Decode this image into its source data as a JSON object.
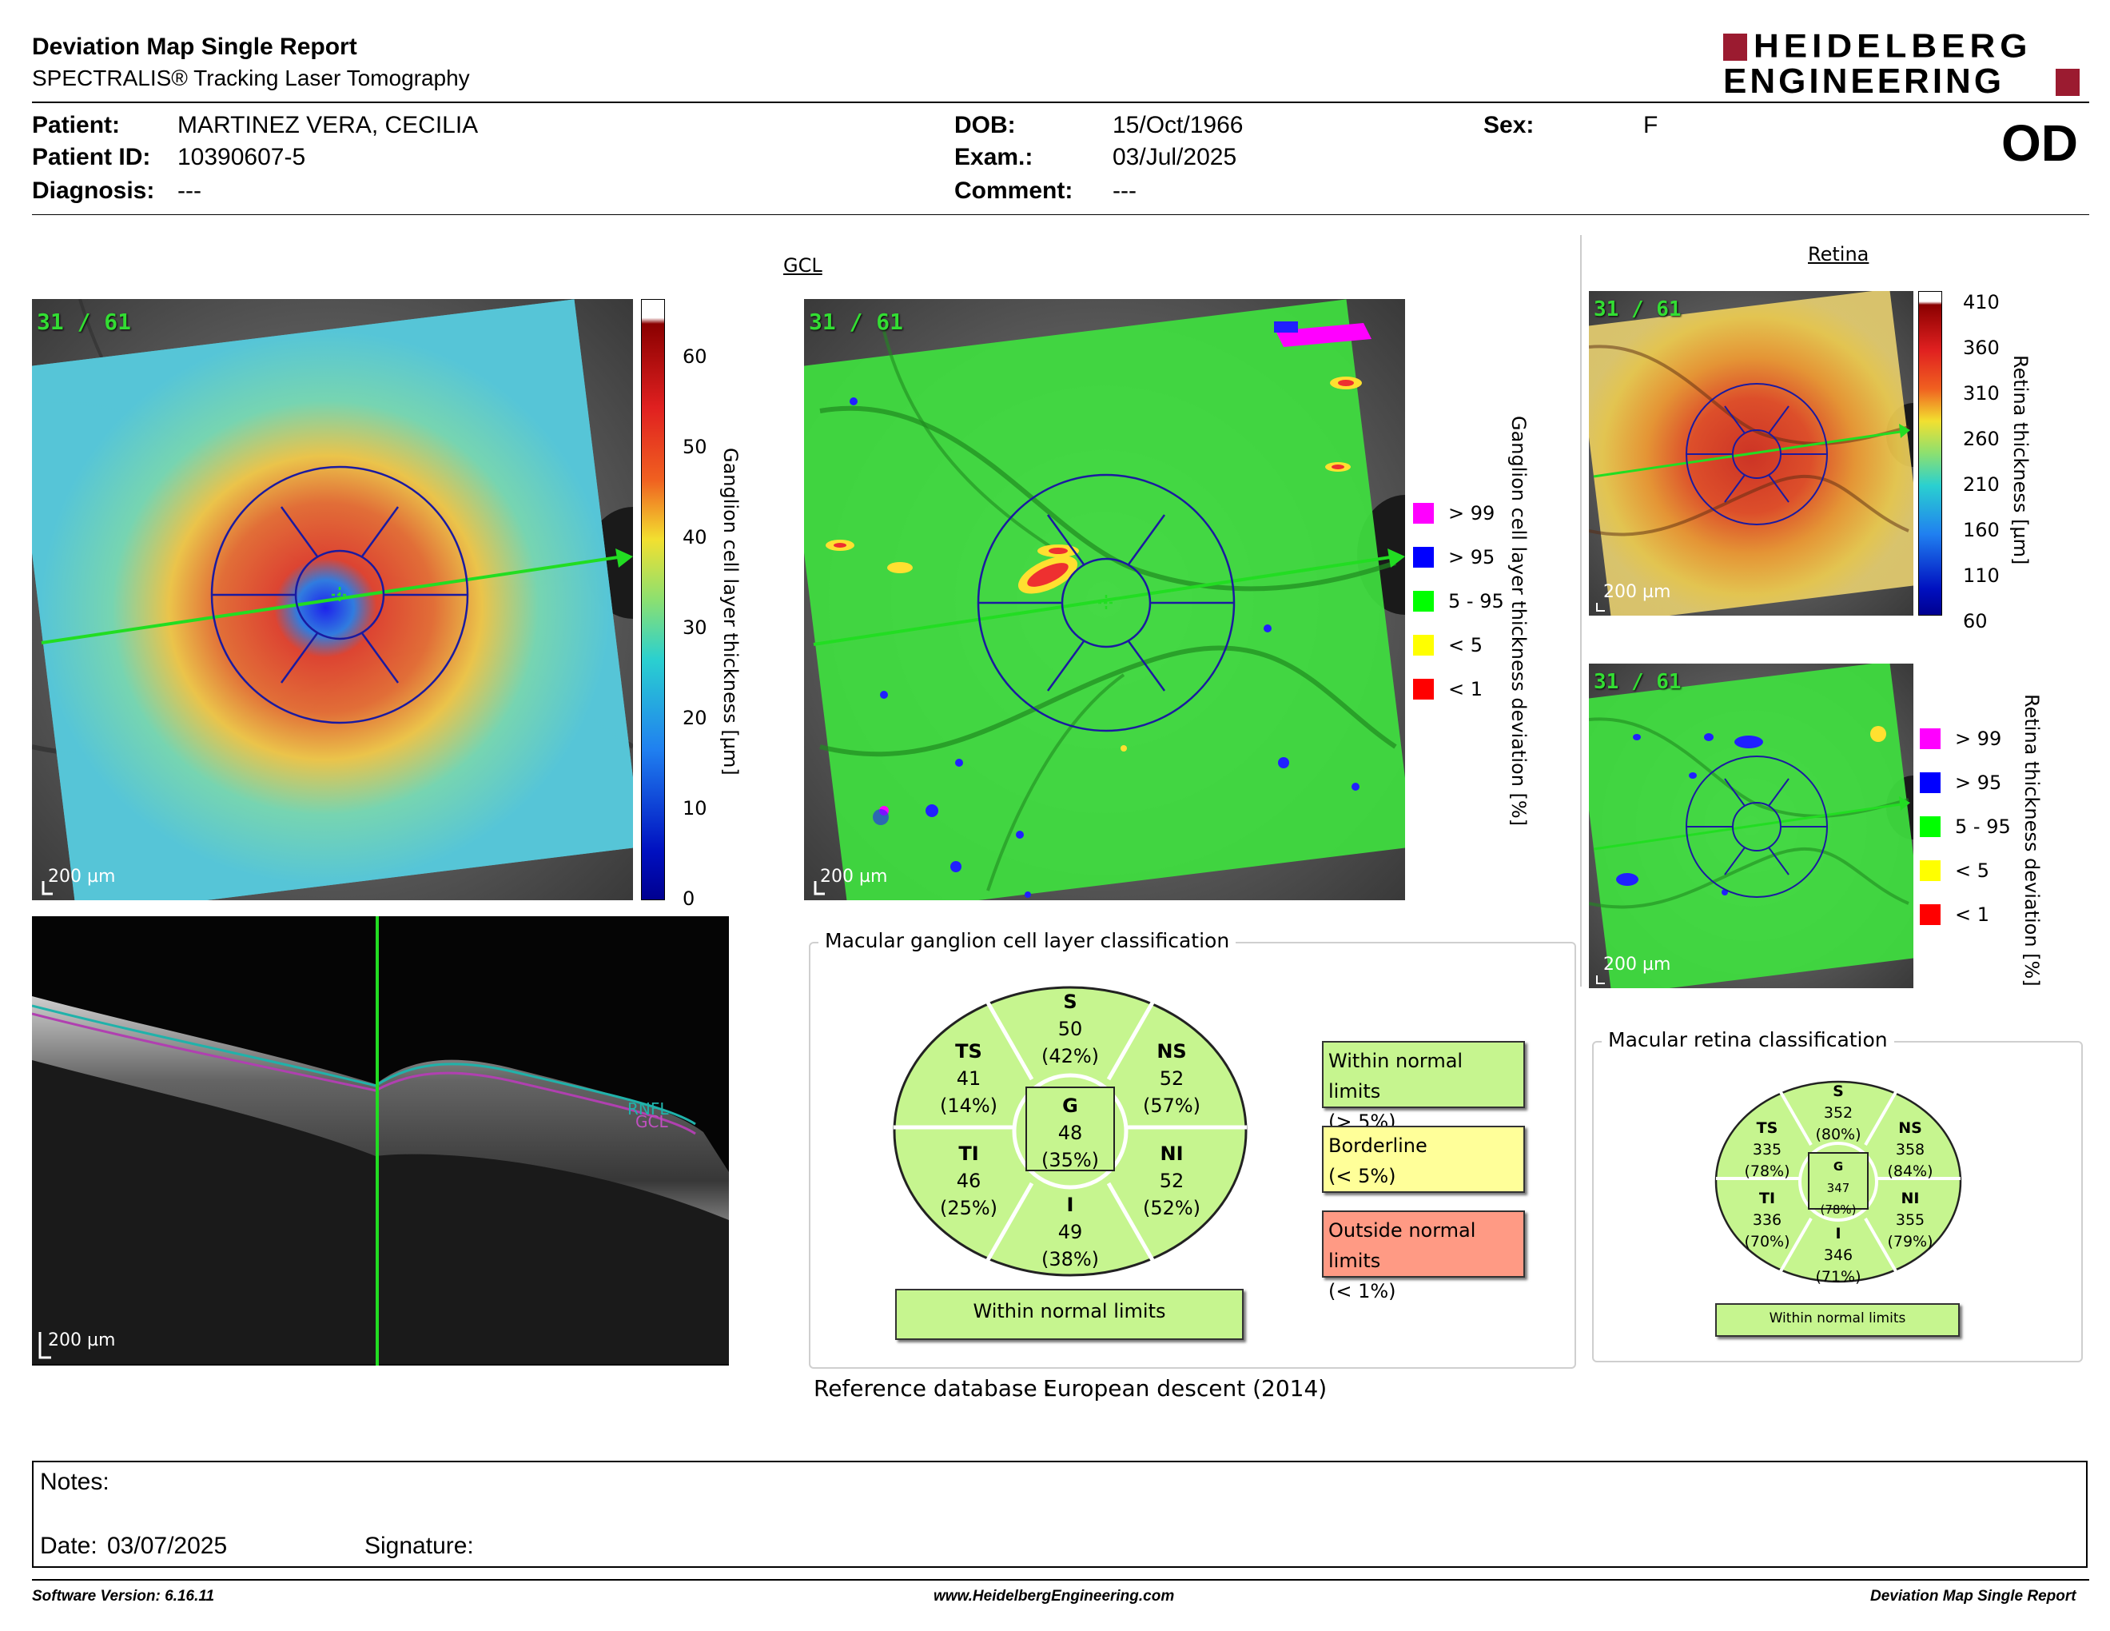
{
  "header": {
    "title": "Deviation Map Single Report",
    "subtitle": "SPECTRALIS® Tracking Laser Tomography",
    "logo_line1": "HEIDELBERG",
    "logo_line2": "ENGINEERING",
    "eye": "OD"
  },
  "patient": {
    "patient_label": "Patient:",
    "patient_value": "MARTINEZ VERA, CECILIA",
    "id_label": "Patient ID:",
    "id_value": "10390607-5",
    "diagnosis_label": "Diagnosis:",
    "diagnosis_value": "---",
    "dob_label": "DOB:",
    "dob_value": "15/Oct/1966",
    "exam_label": "Exam.:",
    "exam_value": "03/Jul/2025",
    "comment_label": "Comment:",
    "comment_value": "---",
    "sex_label": "Sex:",
    "sex_value": "F"
  },
  "sections": {
    "gcl": "GCL",
    "retina": "Retina"
  },
  "images": {
    "frame_count": "31 / 61",
    "scale_label": "200 µm"
  },
  "gcl_thickness_scale": {
    "label": "Ganglion cell layer thickness [µm]",
    "ticks": [
      "60",
      "50",
      "40",
      "30",
      "20",
      "10",
      "0"
    ]
  },
  "gcl_deviation_legend": {
    "label": "Ganglion cell layer thickness deviation [%]",
    "items": [
      {
        "text": "> 99",
        "color": "#ff00ff"
      },
      {
        "text": "> 95",
        "color": "#0000ff"
      },
      {
        "text": "5 - 95",
        "color": "#00ff00"
      },
      {
        "text": "< 5",
        "color": "#ffff00"
      },
      {
        "text": "< 1",
        "color": "#ff0000"
      }
    ]
  },
  "retina_thickness_scale": {
    "label": "Retina thickness [µm]",
    "ticks": [
      "410",
      "360",
      "310",
      "260",
      "210",
      "160",
      "110",
      "60"
    ]
  },
  "retina_deviation_legend": {
    "label": "Retina thickness deviation [%]",
    "items": [
      {
        "text": "> 99",
        "color": "#ff00ff"
      },
      {
        "text": "> 95",
        "color": "#0000ff"
      },
      {
        "text": "5 - 95",
        "color": "#00ff00"
      },
      {
        "text": "< 5",
        "color": "#ffff00"
      },
      {
        "text": "< 1",
        "color": "#ff0000"
      }
    ]
  },
  "bscan": {
    "layer_labels": [
      "RNFL",
      "GCL"
    ]
  },
  "gcl_classification": {
    "title": "Macular ganglion cell layer classification",
    "sectors": {
      "S": {
        "label": "S",
        "value": "50",
        "pct": "(42%)"
      },
      "TS": {
        "label": "TS",
        "value": "41",
        "pct": "(14%)"
      },
      "NS": {
        "label": "NS",
        "value": "52",
        "pct": "(57%)"
      },
      "G": {
        "label": "G",
        "value": "48",
        "pct": "(35%)"
      },
      "TI": {
        "label": "TI",
        "value": "46",
        "pct": "(25%)"
      },
      "NI": {
        "label": "NI",
        "value": "52",
        "pct": "(52%)"
      },
      "I": {
        "label": "I",
        "value": "49",
        "pct": "(38%)"
      }
    },
    "result": "Within normal limits",
    "legend": [
      {
        "line1": "Within normal limits",
        "line2": "(> 5%)",
        "color": "#c6f58f"
      },
      {
        "line1": "Borderline",
        "line2": "(< 5%)",
        "color": "#ffff99"
      },
      {
        "line1": "Outside normal limits",
        "line2": "(< 1%)",
        "color": "#ff9a84"
      }
    ],
    "reference_label": "Reference database :",
    "reference_value": "European descent (2014)"
  },
  "retina_classification": {
    "title": "Macular retina classification",
    "sectors": {
      "S": {
        "label": "S",
        "value": "352",
        "pct": "(80%)"
      },
      "TS": {
        "label": "TS",
        "value": "335",
        "pct": "(78%)"
      },
      "NS": {
        "label": "NS",
        "value": "358",
        "pct": "(84%)"
      },
      "G": {
        "label": "G",
        "value": "347",
        "pct": "(78%)"
      },
      "TI": {
        "label": "TI",
        "value": "336",
        "pct": "(70%)"
      },
      "NI": {
        "label": "NI",
        "value": "355",
        "pct": "(79%)"
      },
      "I": {
        "label": "I",
        "value": "346",
        "pct": "(71%)"
      }
    },
    "result": "Within normal limits"
  },
  "notes": {
    "notes_label": "Notes:",
    "date_label": "Date:",
    "date_value": "03/07/2025",
    "signature_label": "Signature:"
  },
  "footer": {
    "software": "Software Version: 6.16.11",
    "website": "www.HeidelbergEngineering.com",
    "report": "Deviation Map Single Report"
  },
  "colors": {
    "normal": "#c6f58f",
    "grid_blue": "#1a1aa0",
    "brand": "#9b1b30"
  }
}
